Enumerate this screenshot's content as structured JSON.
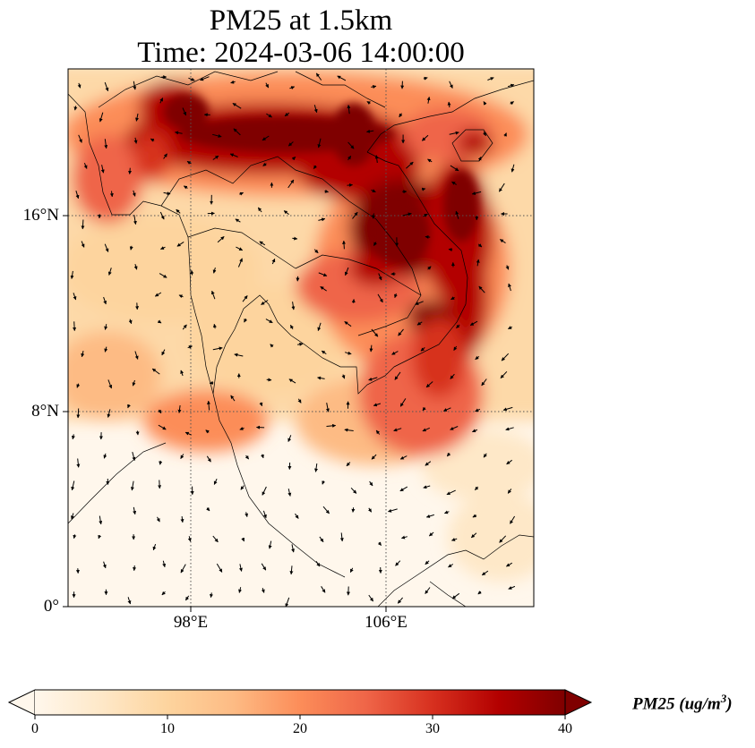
{
  "title": {
    "line1": "PM25 at 1.5km",
    "line2": "Time: 2024-03-06 14:00:00"
  },
  "map": {
    "lon_range": [
      92.0,
      111.0
    ],
    "lat_range": [
      0.0,
      22.0
    ],
    "gridlines": {
      "lon": [
        98,
        106
      ],
      "lat": [
        8,
        16
      ],
      "style": "dotted"
    },
    "lat_labels": [
      "16°N",
      "8°N",
      "0°"
    ],
    "lon_labels": [
      "98°E",
      "106°E"
    ],
    "variable": "PM25",
    "wind_vectors": "shown as small black arrows"
  },
  "colorbar": {
    "colormap": "OrRd",
    "min": 0,
    "max": 40,
    "extend": "both",
    "ticks": [
      "0",
      "10",
      "20",
      "30",
      "40"
    ],
    "label_text": "PM25 (ug/m",
    "label_exp": "3",
    "label_close": ")",
    "colors": [
      "#fff7ec",
      "#fee8c8",
      "#fdd49e",
      "#fdbb84",
      "#fc8d59",
      "#ef6548",
      "#d7301f",
      "#b30000",
      "#7f0000"
    ]
  }
}
